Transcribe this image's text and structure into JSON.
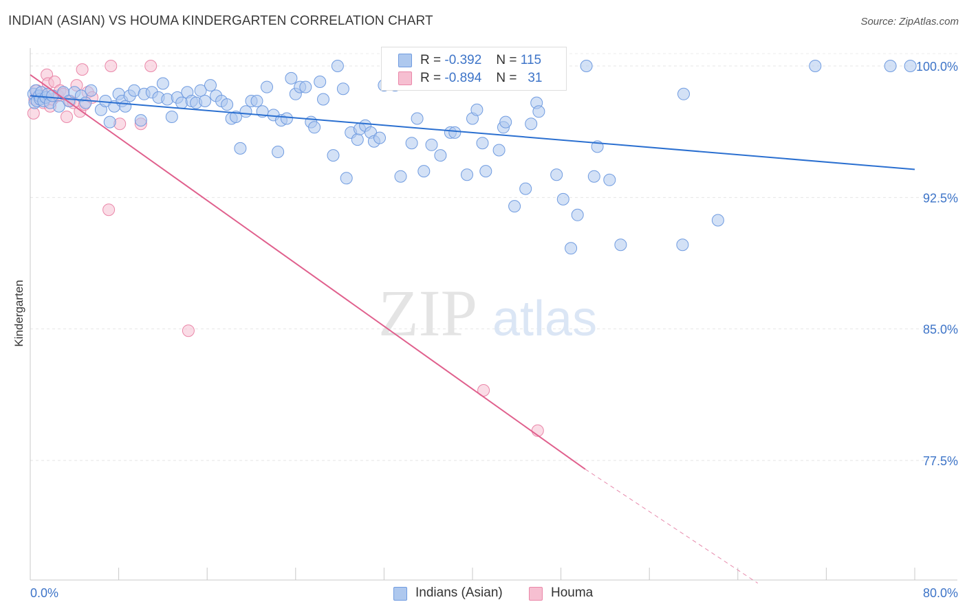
{
  "header": {
    "title": "INDIAN (ASIAN) VS HOUMA KINDERGARTEN CORRELATION CHART",
    "source": "Source: ZipAtlas.com"
  },
  "watermark": {
    "zip": "ZIP",
    "atlas": "atlas"
  },
  "legend": {
    "rows": [
      {
        "r_label": "R =",
        "r_value": "-0.392",
        "n_label": "N =",
        "n_value": "115",
        "color": "#aec8ee",
        "edge": "#6f9be0"
      },
      {
        "r_label": "R =",
        "r_value": "-0.894",
        "n_label": "N =",
        "n_value": "31",
        "color": "#f6bfd1",
        "edge": "#ea86a8"
      }
    ]
  },
  "bottom_legend": [
    {
      "label": "Indians (Asian)",
      "color": "#aec8ee",
      "edge": "#6f9be0"
    },
    {
      "label": "Houma",
      "color": "#f6bfd1",
      "edge": "#ea86a8"
    }
  ],
  "chart_data": {
    "type": "scatter",
    "title": "INDIAN (ASIAN) VS HOUMA KINDERGARTEN CORRELATION CHART",
    "xlabel": "",
    "ylabel": "Kindergarten",
    "xlim": [
      0,
      80
    ],
    "ylim": [
      70.5,
      101
    ],
    "x_tick_labels": [
      "0.0%",
      "80.0%"
    ],
    "y_ticks": [
      77.5,
      85.0,
      92.5,
      100.0
    ],
    "y_tick_labels": [
      "77.5%",
      "85.0%",
      "92.5%",
      "100.0%"
    ],
    "grid": true,
    "legend_placement": "top-center",
    "series": [
      {
        "name": "Indians (Asian)",
        "color": "#6f9be0",
        "fill": "#aec8ee",
        "trend": {
          "x": [
            0,
            80
          ],
          "y": [
            98.3,
            94.1
          ]
        },
        "points": [
          [
            0.3,
            98.4
          ],
          [
            0.4,
            97.9
          ],
          [
            0.5,
            98.6
          ],
          [
            0.6,
            98.0
          ],
          [
            0.8,
            98.3
          ],
          [
            0.9,
            98.1
          ],
          [
            1.0,
            98.5
          ],
          [
            1.2,
            98.0
          ],
          [
            1.4,
            98.2
          ],
          [
            1.6,
            98.4
          ],
          [
            1.8,
            97.9
          ],
          [
            2.0,
            98.3
          ],
          [
            2.6,
            97.7
          ],
          [
            3.0,
            98.5
          ],
          [
            3.5,
            98.0
          ],
          [
            4.0,
            98.5
          ],
          [
            4.6,
            98.3
          ],
          [
            5.0,
            97.9
          ],
          [
            5.5,
            98.6
          ],
          [
            6.4,
            97.5
          ],
          [
            6.8,
            98.0
          ],
          [
            7.2,
            96.8
          ],
          [
            7.6,
            97.7
          ],
          [
            8.0,
            98.4
          ],
          [
            8.3,
            98.0
          ],
          [
            8.6,
            97.7
          ],
          [
            9.0,
            98.3
          ],
          [
            9.4,
            98.6
          ],
          [
            10.0,
            96.9
          ],
          [
            10.3,
            98.4
          ],
          [
            11.0,
            98.5
          ],
          [
            11.6,
            98.2
          ],
          [
            12.0,
            99.0
          ],
          [
            12.4,
            98.1
          ],
          [
            12.8,
            97.1
          ],
          [
            13.3,
            98.2
          ],
          [
            13.7,
            97.9
          ],
          [
            14.2,
            98.5
          ],
          [
            14.6,
            98.0
          ],
          [
            15.0,
            97.9
          ],
          [
            15.4,
            98.6
          ],
          [
            15.8,
            98.0
          ],
          [
            16.3,
            98.9
          ],
          [
            16.8,
            98.3
          ],
          [
            17.3,
            98.0
          ],
          [
            17.8,
            97.8
          ],
          [
            18.2,
            97.0
          ],
          [
            18.6,
            97.1
          ],
          [
            19.0,
            95.3
          ],
          [
            19.5,
            97.4
          ],
          [
            20.0,
            98.0
          ],
          [
            20.5,
            98.0
          ],
          [
            21.0,
            97.4
          ],
          [
            21.4,
            98.8
          ],
          [
            22.0,
            97.2
          ],
          [
            22.4,
            95.1
          ],
          [
            22.7,
            96.9
          ],
          [
            23.2,
            97.0
          ],
          [
            23.6,
            99.3
          ],
          [
            24.0,
            98.4
          ],
          [
            24.4,
            98.8
          ],
          [
            24.9,
            98.8
          ],
          [
            25.4,
            96.8
          ],
          [
            25.7,
            96.5
          ],
          [
            26.2,
            99.1
          ],
          [
            26.5,
            98.1
          ],
          [
            27.4,
            94.9
          ],
          [
            27.8,
            100.0
          ],
          [
            28.3,
            98.7
          ],
          [
            28.6,
            93.6
          ],
          [
            29.0,
            96.2
          ],
          [
            29.6,
            95.8
          ],
          [
            29.8,
            96.4
          ],
          [
            30.3,
            96.6
          ],
          [
            30.8,
            96.2
          ],
          [
            31.1,
            95.7
          ],
          [
            31.6,
            95.9
          ],
          [
            32.0,
            98.9
          ],
          [
            32.3,
            99.1
          ],
          [
            33.0,
            98.9
          ],
          [
            33.5,
            93.7
          ],
          [
            34.0,
            100.0
          ],
          [
            34.5,
            95.6
          ],
          [
            35.0,
            97.0
          ],
          [
            35.6,
            94.0
          ],
          [
            36.3,
            95.5
          ],
          [
            37.1,
            94.9
          ],
          [
            38.0,
            96.2
          ],
          [
            38.4,
            96.2
          ],
          [
            39.5,
            93.8
          ],
          [
            40.0,
            97.0
          ],
          [
            40.4,
            97.5
          ],
          [
            40.9,
            95.6
          ],
          [
            41.2,
            94.0
          ],
          [
            42.4,
            95.2
          ],
          [
            42.8,
            96.5
          ],
          [
            43.0,
            96.8
          ],
          [
            43.8,
            92.0
          ],
          [
            44.8,
            93.0
          ],
          [
            45.3,
            96.7
          ],
          [
            45.8,
            97.9
          ],
          [
            46.0,
            97.4
          ],
          [
            47.6,
            93.8
          ],
          [
            48.2,
            92.4
          ],
          [
            49.5,
            91.5
          ],
          [
            48.9,
            89.6
          ],
          [
            50.3,
            100.0
          ],
          [
            51.3,
            95.4
          ],
          [
            51.0,
            93.7
          ],
          [
            52.4,
            93.5
          ],
          [
            53.4,
            89.8
          ],
          [
            59.0,
            89.8
          ],
          [
            59.1,
            98.4
          ],
          [
            62.2,
            91.2
          ],
          [
            71.0,
            100.0
          ],
          [
            77.8,
            100.0
          ],
          [
            79.6,
            100.0
          ]
        ]
      },
      {
        "name": "Houma",
        "color": "#ea86a8",
        "fill": "#f6bfd1",
        "trend": {
          "x": [
            0,
            50.2,
            65.8
          ],
          "y": [
            99.5,
            77.0,
            70.5
          ],
          "dashed_after_x": 50.2
        },
        "points": [
          [
            0.3,
            97.3
          ],
          [
            0.4,
            98.1
          ],
          [
            0.6,
            98.6
          ],
          [
            0.9,
            98.2
          ],
          [
            1.2,
            97.9
          ],
          [
            1.3,
            98.3
          ],
          [
            1.5,
            99.5
          ],
          [
            1.6,
            99.0
          ],
          [
            1.8,
            97.7
          ],
          [
            2.0,
            98.1
          ],
          [
            2.2,
            99.1
          ],
          [
            2.5,
            98.3
          ],
          [
            2.7,
            98.6
          ],
          [
            3.0,
            98.4
          ],
          [
            3.3,
            97.1
          ],
          [
            3.6,
            98.0
          ],
          [
            3.9,
            97.9
          ],
          [
            4.2,
            98.9
          ],
          [
            4.5,
            97.4
          ],
          [
            4.7,
            99.8
          ],
          [
            4.9,
            97.8
          ],
          [
            5.2,
            98.5
          ],
          [
            5.6,
            98.2
          ],
          [
            7.3,
            100.0
          ],
          [
            7.1,
            91.8
          ],
          [
            8.1,
            96.7
          ],
          [
            10.0,
            96.7
          ],
          [
            10.9,
            100.0
          ],
          [
            14.3,
            84.9
          ],
          [
            41.0,
            81.5
          ],
          [
            45.9,
            79.2
          ]
        ]
      }
    ]
  }
}
